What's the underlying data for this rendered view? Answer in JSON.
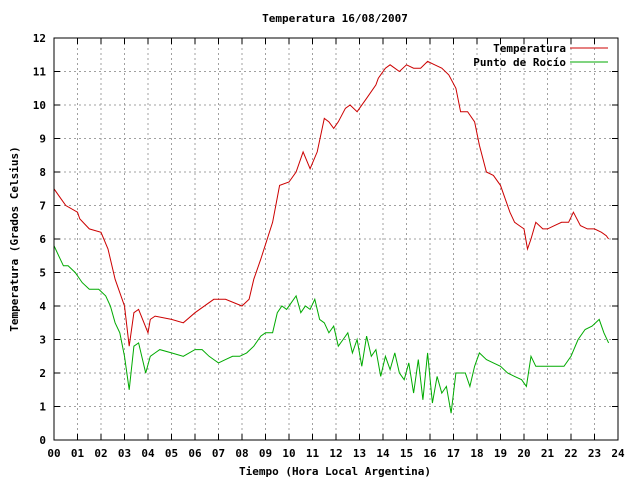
{
  "chart_data": {
    "type": "line",
    "title": "Temperatura 16/08/2007",
    "xlabel": "Tiempo (Hora Local Argentina)",
    "ylabel": "Temperatura (Grados Celsius)",
    "xlim": [
      0,
      24
    ],
    "ylim": [
      0,
      12
    ],
    "x_tick_labels": [
      "00",
      "01",
      "02",
      "03",
      "04",
      "05",
      "06",
      "07",
      "08",
      "09",
      "10",
      "11",
      "12",
      "13",
      "14",
      "15",
      "16",
      "17",
      "18",
      "19",
      "20",
      "21",
      "22",
      "23",
      "24"
    ],
    "y_tick_labels": [
      "0",
      "1",
      "2",
      "3",
      "4",
      "5",
      "6",
      "7",
      "8",
      "9",
      "10",
      "11",
      "12"
    ],
    "grid": true,
    "legend_position": "top-right",
    "colors": {
      "temperatura": "#cc0000",
      "punto_de_rocio": "#00aa00"
    },
    "series": [
      {
        "name": "Temperatura",
        "x": [
          0,
          0.3,
          0.5,
          1.0,
          1.1,
          1.5,
          2.0,
          2.3,
          2.6,
          3.0,
          3.2,
          3.4,
          3.6,
          4.0,
          4.1,
          4.3,
          5.0,
          5.5,
          6.0,
          6.8,
          7.3,
          8.0,
          8.3,
          8.5,
          8.8,
          9.3,
          9.6,
          10.0,
          10.3,
          10.6,
          10.9,
          11.2,
          11.5,
          11.7,
          11.9,
          12.1,
          12.4,
          12.6,
          12.9,
          13.3,
          13.7,
          13.8,
          14.1,
          14.3,
          14.7,
          15.0,
          15.3,
          15.6,
          15.9,
          16.2,
          16.5,
          16.8,
          17.1,
          17.3,
          17.6,
          17.9,
          18.1,
          18.4,
          18.7,
          19.0,
          19.2,
          19.4,
          19.6,
          19.8,
          20.0,
          20.15,
          20.3,
          20.5,
          20.8,
          21.0,
          21.3,
          21.6,
          21.9,
          22.1,
          22.4,
          22.7,
          23.0,
          23.3,
          23.5,
          23.6
        ],
        "values": [
          7.5,
          7.2,
          7.0,
          6.8,
          6.6,
          6.3,
          6.2,
          5.7,
          4.8,
          4.0,
          2.8,
          3.8,
          3.9,
          3.2,
          3.6,
          3.7,
          3.6,
          3.5,
          3.8,
          4.2,
          4.2,
          4.0,
          4.2,
          4.8,
          5.4,
          6.5,
          7.6,
          7.7,
          8.0,
          8.6,
          8.1,
          8.6,
          9.6,
          9.5,
          9.3,
          9.5,
          9.9,
          10.0,
          9.8,
          10.2,
          10.6,
          10.8,
          11.1,
          11.2,
          11.0,
          11.2,
          11.1,
          11.1,
          11.3,
          11.2,
          11.1,
          10.9,
          10.5,
          9.8,
          9.8,
          9.5,
          8.8,
          8.0,
          7.9,
          7.6,
          7.2,
          6.8,
          6.5,
          6.4,
          6.3,
          5.7,
          6.0,
          6.5,
          6.3,
          6.3,
          6.4,
          6.5,
          6.5,
          6.8,
          6.4,
          6.3,
          6.3,
          6.2,
          6.1,
          6.0
        ]
      },
      {
        "name": "Punto de Rocío",
        "x": [
          0,
          0.2,
          0.4,
          0.6,
          0.9,
          1.2,
          1.5,
          1.9,
          2.2,
          2.4,
          2.6,
          2.8,
          3.0,
          3.2,
          3.4,
          3.6,
          3.9,
          4.1,
          4.3,
          4.5,
          5.0,
          5.5,
          6.0,
          6.3,
          6.6,
          6.8,
          7.0,
          7.3,
          7.6,
          7.9,
          8.2,
          8.5,
          8.8,
          9.0,
          9.3,
          9.5,
          9.7,
          9.9,
          10.1,
          10.3,
          10.5,
          10.7,
          10.9,
          11.1,
          11.3,
          11.5,
          11.7,
          11.9,
          12.1,
          12.3,
          12.5,
          12.7,
          12.9,
          13.1,
          13.3,
          13.5,
          13.7,
          13.9,
          14.1,
          14.3,
          14.5,
          14.7,
          14.9,
          15.1,
          15.3,
          15.5,
          15.7,
          15.9,
          16.1,
          16.3,
          16.5,
          16.7,
          16.9,
          17.1,
          17.3,
          17.5,
          17.7,
          17.9,
          18.1,
          18.4,
          18.7,
          19.0,
          19.3,
          19.6,
          19.9,
          20.1,
          20.3,
          20.5,
          20.8,
          21.1,
          21.4,
          21.7,
          22.0,
          22.3,
          22.6,
          22.9,
          23.2,
          23.4,
          23.6
        ],
        "values": [
          5.8,
          5.5,
          5.2,
          5.2,
          5.0,
          4.7,
          4.5,
          4.5,
          4.3,
          4.0,
          3.5,
          3.2,
          2.5,
          1.5,
          2.8,
          2.9,
          2.0,
          2.5,
          2.6,
          2.7,
          2.6,
          2.5,
          2.7,
          2.7,
          2.5,
          2.4,
          2.3,
          2.4,
          2.5,
          2.5,
          2.6,
          2.8,
          3.1,
          3.2,
          3.2,
          3.8,
          4.0,
          3.9,
          4.1,
          4.3,
          3.8,
          4.0,
          3.9,
          4.2,
          3.6,
          3.5,
          3.2,
          3.4,
          2.8,
          3.0,
          3.2,
          2.6,
          3.0,
          2.2,
          3.1,
          2.5,
          2.7,
          1.9,
          2.5,
          2.1,
          2.6,
          2.0,
          1.8,
          2.3,
          1.4,
          2.4,
          1.2,
          2.6,
          1.1,
          1.9,
          1.4,
          1.6,
          0.8,
          2.0,
          2.0,
          2.0,
          1.6,
          2.2,
          2.6,
          2.4,
          2.3,
          2.2,
          2.0,
          1.9,
          1.8,
          1.6,
          2.5,
          2.2,
          2.2,
          2.2,
          2.2,
          2.2,
          2.5,
          3.0,
          3.3,
          3.4,
          3.6,
          3.2,
          2.9
        ]
      }
    ]
  }
}
